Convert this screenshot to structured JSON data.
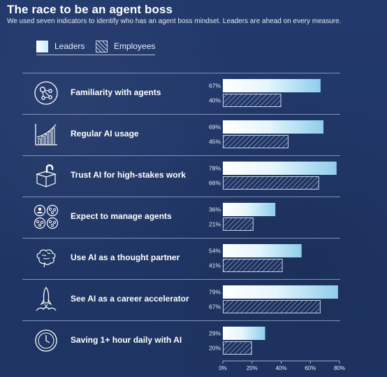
{
  "title": "The race to be an agent boss",
  "subtitle": "We used seven indicators to identify who has an agent boss mindset. Leaders are ahead on every measure.",
  "legend": {
    "leaders": "Leaders",
    "employees": "Employees"
  },
  "colors": {
    "background": "#1f3566",
    "leaders_light": "#ffffff",
    "leaders_dark": "#8fcdeb",
    "employees_hatch": "#c7d3ea"
  },
  "chart_data": {
    "type": "bar",
    "orientation": "horizontal",
    "title": "The race to be an agent boss",
    "subtitle": "We used seven indicators to identify who has an agent boss mindset. Leaders are ahead on every measure.",
    "categories": [
      "Familiarity with agents",
      "Regular AI usage",
      "Trust AI for high-stakes work",
      "Expect to manage agents",
      "Use AI as a thought partner",
      "See AI as a career accelerator",
      "Saving 1+ hour daily with AI"
    ],
    "icons": [
      "network-nodes-icon",
      "growth-bar-chart-icon",
      "unlocked-padlock-box-icon",
      "people-and-agents-icon",
      "brain-icon",
      "rocket-launch-icon",
      "clock-icon"
    ],
    "series": [
      {
        "name": "Leaders",
        "values": [
          67,
          69,
          78,
          36,
          54,
          79,
          29
        ],
        "labels": [
          "67%",
          "69%",
          "78%",
          "36%",
          "54%",
          "79%",
          "29%"
        ]
      },
      {
        "name": "Employees",
        "values": [
          40,
          45,
          66,
          21,
          41,
          67,
          20
        ],
        "labels": [
          "40%",
          "45%",
          "66%",
          "21%",
          "41%",
          "67%",
          "20%"
        ]
      }
    ],
    "xlim": [
      0,
      80
    ],
    "ticks": [
      0,
      20,
      40,
      60,
      80
    ],
    "tick_labels": [
      "0%",
      "20%",
      "40%",
      "60%",
      "80%"
    ],
    "legend_position": "top-left",
    "grid": false
  }
}
